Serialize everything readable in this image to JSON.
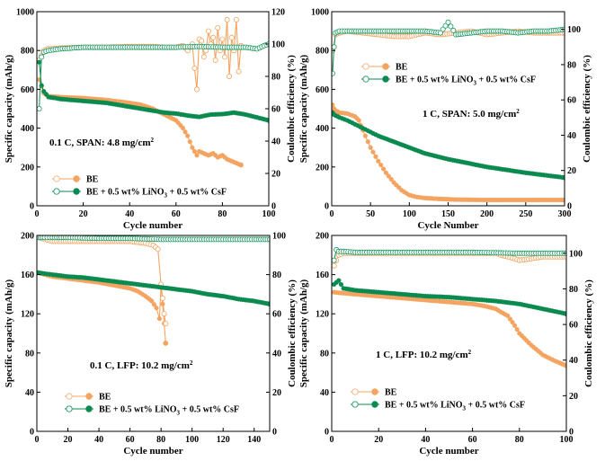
{
  "colors": {
    "be": "#f4a460",
    "be_open": "#f6b27e",
    "add": "#0b8a50",
    "add_open": "#1e9a62"
  },
  "chart_data": [
    {
      "id": "p1",
      "type": "line",
      "annotation": "0.1 C, SPAN: 4.8 mg/cm²",
      "xlabel": "Cycle number",
      "ylabel": "Specific capacity (mAh/g)",
      "y2label": "Coulombic efficiency (%)",
      "xlim": [
        0,
        100
      ],
      "ylim": [
        0,
        1000
      ],
      "y2lim": [
        0,
        120
      ],
      "xticks": [
        0,
        20,
        40,
        60,
        80,
        100
      ],
      "yticks": [
        0,
        200,
        400,
        600,
        800,
        1000
      ],
      "y2ticks": [
        0,
        20,
        40,
        60,
        80,
        100,
        120
      ],
      "legend": [
        "BE",
        "BE + 0.5 wt% LiNO₃ + 0.5 wt% CsF"
      ],
      "series": [
        {
          "name": "BE",
          "axis": "left",
          "style": "fill",
          "color": "#f4a460",
          "x": [
            1,
            3,
            5,
            10,
            20,
            30,
            40,
            45,
            50,
            55,
            60,
            63,
            65,
            67,
            69,
            70,
            72,
            74,
            76,
            78,
            80,
            82,
            84,
            86,
            88
          ],
          "y": [
            650,
            580,
            565,
            560,
            555,
            545,
            530,
            520,
            500,
            470,
            440,
            400,
            360,
            300,
            260,
            280,
            270,
            260,
            270,
            250,
            260,
            240,
            230,
            220,
            210
          ]
        },
        {
          "name": "BE",
          "axis": "right",
          "style": "open",
          "color": "#f4a460",
          "x": [
            1,
            3,
            5,
            10,
            20,
            30,
            40,
            50,
            55,
            60,
            63,
            65,
            67,
            68,
            69,
            70,
            71,
            72,
            73,
            74,
            75,
            76,
            77,
            78,
            79,
            80,
            81,
            82,
            83,
            84,
            85,
            86,
            87,
            88
          ],
          "y": [
            90,
            96,
            97,
            97.5,
            98,
            98,
            98.5,
            98.5,
            98,
            98,
            99,
            96,
            100,
            85,
            72,
            103,
            102,
            92,
            96,
            108,
            100,
            104,
            90,
            110,
            96,
            103,
            92,
            115,
            80,
            104,
            96,
            115,
            83,
            99
          ]
        },
        {
          "name": "BE + 0.5 wt% LiNO₃ + 0.5 wt% CsF",
          "axis": "left",
          "style": "fill",
          "color": "#0b8a50",
          "x": [
            1,
            2,
            3,
            5,
            8,
            10,
            15,
            20,
            25,
            30,
            35,
            40,
            45,
            50,
            55,
            60,
            65,
            70,
            75,
            80,
            85,
            90,
            95,
            100
          ],
          "y": [
            740,
            620,
            590,
            560,
            555,
            550,
            545,
            540,
            535,
            530,
            520,
            510,
            500,
            490,
            480,
            475,
            465,
            458,
            470,
            472,
            480,
            470,
            455,
            440
          ]
        },
        {
          "name": "BE + 0.5 wt% LiNO₃ + 0.5 wt% CsF",
          "axis": "right",
          "style": "open",
          "color": "#1e9a62",
          "x": [
            1,
            2,
            3,
            5,
            10,
            20,
            30,
            40,
            50,
            60,
            70,
            80,
            90,
            95,
            98,
            100
          ],
          "y": [
            60,
            92,
            95,
            96,
            97,
            98,
            98,
            98,
            98,
            98,
            98.5,
            98,
            98,
            97,
            99,
            100
          ]
        }
      ]
    },
    {
      "id": "p2",
      "type": "line",
      "annotation": "1 C, SPAN: 5.0 mg/cm²",
      "xlabel": "Cycle Number",
      "ylabel": "Specific capacity (mAh/g)",
      "y2label": "Coulombic efficiency (%)",
      "xlim": [
        0,
        300
      ],
      "ylim": [
        0,
        1000
      ],
      "y2lim": [
        0,
        110
      ],
      "xticks": [
        0,
        50,
        100,
        150,
        200,
        250,
        300
      ],
      "yticks": [
        0,
        200,
        400,
        600,
        800,
        1000
      ],
      "y2ticks": [
        0,
        20,
        40,
        60,
        80,
        100
      ],
      "legend": [
        "BE",
        "BE + 0.5 wt% LiNO₃ + 0.5 wt% CsF"
      ],
      "series": [
        {
          "name": "BE",
          "axis": "left",
          "style": "fill",
          "color": "#f4a460",
          "x": [
            1,
            3,
            5,
            10,
            20,
            30,
            35,
            40,
            50,
            60,
            70,
            80,
            90,
            100,
            110,
            120,
            140,
            160,
            200,
            250,
            300
          ],
          "y": [
            520,
            500,
            490,
            480,
            475,
            460,
            440,
            390,
            300,
            230,
            170,
            120,
            80,
            55,
            45,
            40,
            35,
            32,
            30,
            30,
            30
          ]
        },
        {
          "name": "BE",
          "axis": "right",
          "style": "open",
          "color": "#f4a460",
          "x": [
            1,
            5,
            10,
            20,
            40,
            60,
            80,
            100,
            120,
            140,
            160,
            180,
            200,
            220,
            240,
            260,
            280,
            300
          ],
          "y": [
            88,
            97,
            98,
            99,
            98,
            97,
            96,
            96,
            98,
            97,
            98,
            99,
            97,
            98,
            99,
            98,
            98,
            98
          ]
        },
        {
          "name": "BE + 0.5 wt% LiNO₃ + 0.5 wt% CsF",
          "axis": "left",
          "style": "fill",
          "color": "#0b8a50",
          "x": [
            1,
            3,
            5,
            10,
            20,
            30,
            40,
            50,
            60,
            80,
            100,
            120,
            150,
            200,
            250,
            300
          ],
          "y": [
            480,
            470,
            465,
            455,
            440,
            420,
            400,
            380,
            360,
            330,
            300,
            270,
            240,
            200,
            170,
            145
          ]
        },
        {
          "name": "BE + 0.5 wt% LiNO₃ + 0.5 wt% CsF",
          "axis": "right",
          "style": "open",
          "color": "#1e9a62",
          "x": [
            1,
            3,
            5,
            10,
            20,
            40,
            60,
            80,
            100,
            120,
            140,
            150,
            160,
            180,
            200,
            220,
            240,
            260,
            280,
            300
          ],
          "y": [
            75,
            90,
            98,
            99,
            99,
            99,
            99,
            99,
            99,
            99,
            98,
            104,
            97,
            98,
            99,
            99,
            98,
            99,
            99,
            100
          ]
        }
      ]
    },
    {
      "id": "p3",
      "type": "line",
      "annotation": "0.1 C, LFP:  10.2 mg/cm²",
      "xlabel": "Cycle number",
      "ylabel": "Specific capacity (mAh/g)",
      "y2label": "Coulombic efficiency (%)",
      "xlim": [
        0,
        150
      ],
      "ylim": [
        0,
        200
      ],
      "y2lim": [
        0,
        100
      ],
      "xticks": [
        0,
        20,
        40,
        60,
        80,
        100,
        120,
        140
      ],
      "yticks": [
        0,
        40,
        80,
        120,
        160,
        200
      ],
      "y2ticks": [
        0,
        20,
        40,
        60,
        80,
        100
      ],
      "legend": [
        "BE",
        "BE + 0.5 wt% LiNO₃ + 0.5 wt% CsF"
      ],
      "series": [
        {
          "name": "BE",
          "axis": "left",
          "style": "fill",
          "color": "#f4a460",
          "x": [
            1,
            5,
            10,
            20,
            30,
            40,
            50,
            60,
            65,
            70,
            74,
            77,
            79,
            80,
            81,
            82,
            83
          ],
          "y": [
            162,
            160,
            158,
            156,
            154,
            152,
            149,
            146,
            143,
            138,
            133,
            126,
            115,
            150,
            130,
            110,
            90
          ]
        },
        {
          "name": "BE",
          "axis": "right",
          "style": "open",
          "color": "#f4a460",
          "x": [
            1,
            10,
            20,
            30,
            40,
            50,
            60,
            70,
            75,
            78,
            80,
            81,
            82,
            83
          ],
          "y": [
            99,
            97,
            97,
            97,
            97,
            97,
            97,
            96,
            95,
            93,
            75,
            68,
            60,
            55
          ]
        },
        {
          "name": "BE + 0.5 wt% LiNO₃ + 0.5 wt% CsF",
          "axis": "left",
          "style": "fill",
          "color": "#0b8a50",
          "x": [
            1,
            5,
            10,
            20,
            30,
            40,
            50,
            60,
            70,
            80,
            90,
            100,
            110,
            120,
            130,
            140,
            150
          ],
          "y": [
            162,
            161,
            160,
            158,
            157,
            155,
            153,
            151,
            149,
            147,
            145,
            143,
            140,
            138,
            135,
            133,
            130
          ]
        },
        {
          "name": "BE + 0.5 wt% LiNO₃ + 0.5 wt% CsF",
          "axis": "right",
          "style": "open",
          "color": "#1e9a62",
          "x": [
            1,
            5,
            10,
            20,
            40,
            60,
            80,
            100,
            120,
            140,
            150
          ],
          "y": [
            99,
            99,
            99,
            99,
            98.5,
            98.5,
            98,
            98,
            98,
            98,
            98
          ]
        }
      ]
    },
    {
      "id": "p4",
      "type": "line",
      "annotation": "1 C, LFP: 10.2 mg/cm²",
      "xlabel": "Cycle number",
      "ylabel": "Specific capacity  (mAh/g)",
      "y2label": "Coulombic efficiency (%)",
      "xlim": [
        0,
        100
      ],
      "ylim": [
        0,
        200
      ],
      "y2lim": [
        0,
        110
      ],
      "xticks": [
        0,
        20,
        40,
        60,
        80,
        100
      ],
      "yticks": [
        0,
        40,
        80,
        120,
        160,
        200
      ],
      "y2ticks": [
        0,
        20,
        40,
        60,
        80,
        100
      ],
      "legend": [
        "BE",
        "BE + 0.5 wt% LiNO₃ + 0.5 wt% CsF"
      ],
      "series": [
        {
          "name": "BE",
          "axis": "left",
          "style": "fill",
          "color": "#f4a460",
          "x": [
            1,
            5,
            10,
            20,
            30,
            40,
            50,
            60,
            65,
            70,
            72,
            75,
            78,
            80,
            85,
            90,
            95,
            100
          ],
          "y": [
            142,
            141,
            140,
            138,
            136,
            134,
            132,
            130,
            128,
            125,
            122,
            118,
            108,
            100,
            88,
            78,
            72,
            67
          ]
        },
        {
          "name": "BE",
          "axis": "right",
          "style": "open",
          "color": "#f4a460",
          "x": [
            1,
            3,
            5,
            10,
            20,
            40,
            60,
            70,
            72,
            75,
            78,
            80,
            85,
            90,
            95,
            100
          ],
          "y": [
            93,
            99,
            100,
            100,
            100,
            100,
            100,
            100,
            99,
            98,
            97,
            96,
            97,
            98,
            98,
            98
          ]
        },
        {
          "name": "BE + 0.5 wt% LiNO₃ + 0.5 wt% CsF",
          "axis": "left",
          "style": "fill",
          "color": "#0b8a50",
          "x": [
            1,
            2,
            3,
            5,
            10,
            20,
            30,
            40,
            50,
            60,
            70,
            80,
            90,
            100
          ],
          "y": [
            150,
            152,
            154,
            146,
            144,
            142,
            140,
            138,
            137,
            135,
            133,
            130,
            125,
            120
          ]
        },
        {
          "name": "BE + 0.5 wt% LiNO₃ + 0.5 wt% CsF",
          "axis": "right",
          "style": "open",
          "color": "#1e9a62",
          "x": [
            1,
            2,
            3,
            5,
            10,
            20,
            40,
            60,
            80,
            100
          ],
          "y": [
            96,
            102,
            101,
            101,
            100.5,
            100.5,
            100.5,
            100.5,
            100,
            100
          ]
        }
      ]
    }
  ]
}
